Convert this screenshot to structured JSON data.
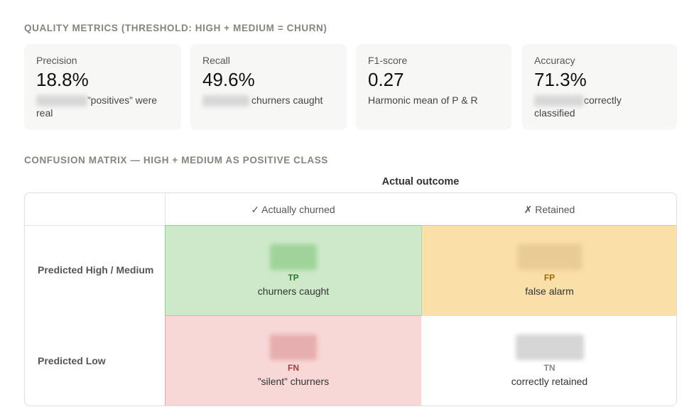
{
  "metrics_section": {
    "title": "QUALITY METRICS (THRESHOLD: HIGH + MEDIUM = CHURN)",
    "cards": [
      {
        "label": "Precision",
        "value": "18.8%",
        "note": "”positives” were real"
      },
      {
        "label": "Recall",
        "value": "49.6%",
        "note": "churners caught"
      },
      {
        "label": "F1-score",
        "value": "0.27",
        "note": "Harmonic mean of P & R"
      },
      {
        "label": "Accuracy",
        "value": "71.3%",
        "note": "correctly classified"
      }
    ]
  },
  "matrix_section": {
    "title": "CONFUSION MATRIX — HIGH + MEDIUM AS POSITIVE CLASS",
    "column_header": "Actual outcome",
    "columns": [
      "✓ Actually churned",
      "✗ Retained"
    ],
    "rows": [
      "Predicted High / Medium",
      "Predicted Low"
    ],
    "cells": [
      [
        {
          "code": "TP",
          "caption": "churners caught"
        },
        {
          "code": "FP",
          "caption": "false alarm"
        }
      ],
      [
        {
          "code": "FN",
          "caption": "”silent” churners"
        },
        {
          "code": "TN",
          "caption": "correctly retained"
        }
      ]
    ]
  }
}
